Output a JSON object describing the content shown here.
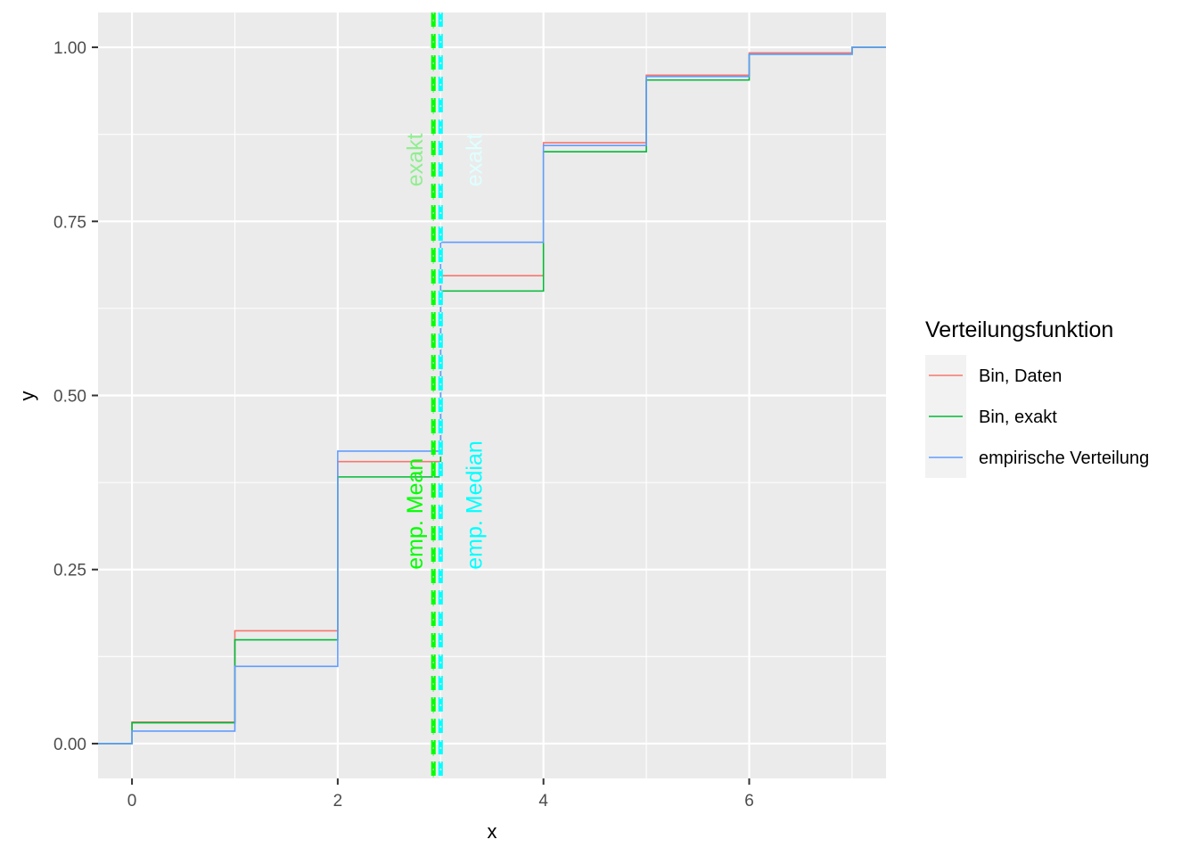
{
  "chart_data": {
    "type": "line",
    "step": true,
    "xlabel": "x",
    "ylabel": "y",
    "xlim": [
      -0.33,
      7.33
    ],
    "ylim": [
      -0.05,
      1.05
    ],
    "x_ticks": [
      0,
      2,
      4,
      6
    ],
    "x_tick_labels": [
      "0",
      "2",
      "4",
      "6"
    ],
    "y_ticks": [
      0,
      0.25,
      0.5,
      0.75,
      1
    ],
    "y_tick_labels": [
      "0.00",
      "0.25",
      "0.50",
      "0.75",
      "1.00"
    ],
    "grid": true,
    "legend": {
      "title": "Verteilungsfunktion",
      "position": "right"
    },
    "series": [
      {
        "name": "Bin, Daten",
        "color": "#F8766D",
        "x": [
          0,
          1,
          2,
          3,
          4,
          5,
          6,
          7
        ],
        "values": [
          0.031,
          0.162,
          0.405,
          0.672,
          0.863,
          0.96,
          0.992,
          1.0
        ]
      },
      {
        "name": "Bin, exakt",
        "color": "#00BA38",
        "x": [
          0,
          1,
          2,
          3,
          4,
          5,
          6,
          7
        ],
        "values": [
          0.03,
          0.149,
          0.383,
          0.65,
          0.85,
          0.953,
          0.99,
          1.0
        ]
      },
      {
        "name": "empirische Verteilung",
        "color": "#619CFF",
        "x": [
          0,
          1,
          2,
          3,
          4,
          5,
          6,
          7
        ],
        "values": [
          0.018,
          0.111,
          0.42,
          0.72,
          0.859,
          0.958,
          0.99,
          1.0
        ]
      }
    ],
    "vlines": [
      {
        "x": 2.93,
        "color": "#00FF00",
        "style": "dashed",
        "label": "emp. Mean",
        "label_y": 0.25
      },
      {
        "x": 2.93,
        "color": "#90EE90",
        "style": "dotted",
        "label": "exakt",
        "label_y": 0.8
      },
      {
        "x": 3.0,
        "color": "#00FFFF",
        "style": "dashed",
        "label": "emp. Median",
        "label_y": 0.25
      },
      {
        "x": 3.0,
        "color": "#E0FFFF",
        "style": "dotted",
        "label": "exakt",
        "label_y": 0.8
      }
    ]
  }
}
